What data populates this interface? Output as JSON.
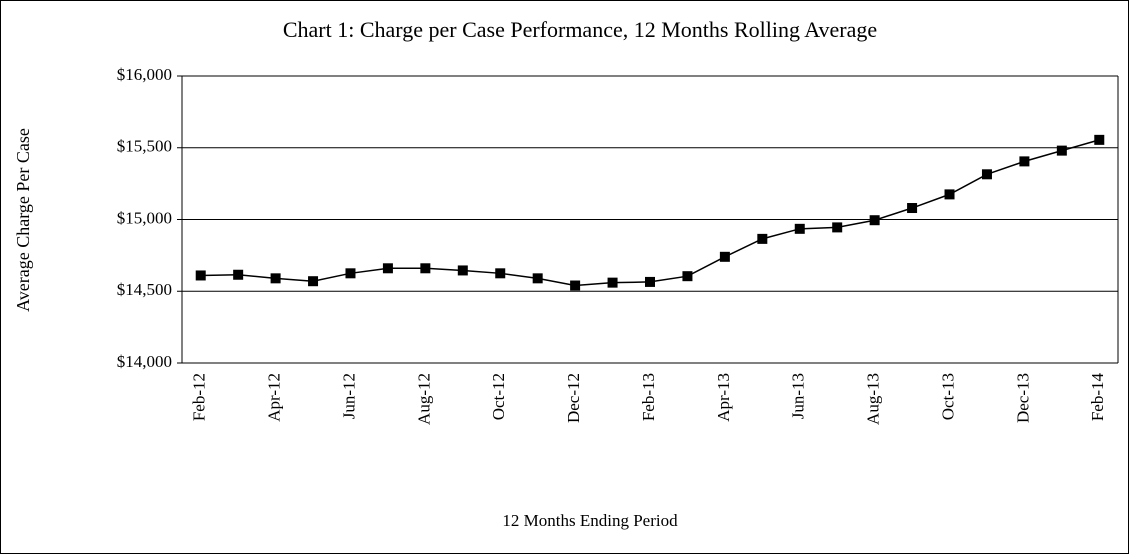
{
  "chart_data": {
    "type": "line",
    "title": "Chart 1: Charge per Case Performance, 12 Months Rolling  Average",
    "y_label": "Average Charge Per Case",
    "x_label": "12 Months Ending Period",
    "categories": [
      "Feb-12",
      null,
      "Apr-12",
      null,
      "Jun-12",
      null,
      "Aug-12",
      null,
      "Oct-12",
      null,
      "Dec-12",
      null,
      "Feb-13",
      null,
      "Apr-13",
      null,
      "Jun-13",
      null,
      "Aug-13",
      null,
      "Oct-13",
      null,
      "Dec-13",
      null,
      "Feb-14"
    ],
    "series": [
      {
        "name": "Average Charge Per Case",
        "color": "#000000",
        "values": [
          14610,
          14615,
          14590,
          14570,
          14625,
          14660,
          14660,
          14645,
          14625,
          14590,
          14540,
          14560,
          14565,
          14605,
          14740,
          14865,
          14935,
          14945,
          14995,
          15080,
          15175,
          15315,
          15405,
          15480,
          15555
        ]
      }
    ],
    "ylim": [
      14000,
      16000
    ],
    "yticks": [
      {
        "value": 14000,
        "label": "$14,000"
      },
      {
        "value": 14500,
        "label": "$14,500"
      },
      {
        "value": 15000,
        "label": "$15,000"
      },
      {
        "value": 15500,
        "label": "$15,500"
      },
      {
        "value": 16000,
        "label": "$16,000"
      }
    ],
    "grid": true
  }
}
